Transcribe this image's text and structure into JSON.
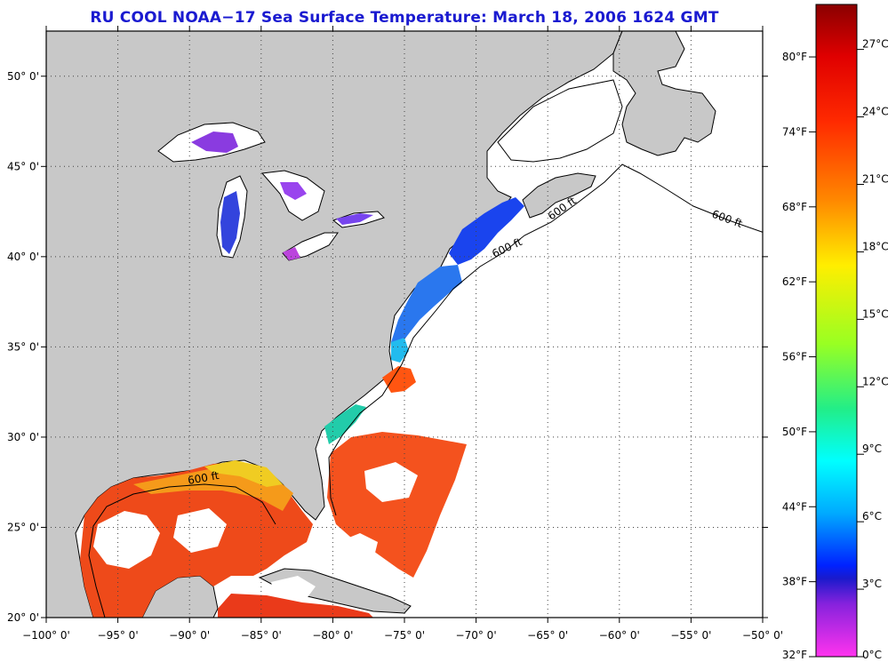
{
  "title": "RU COOL  NOAA−17  Sea Surface Temperature:  March 18, 2006 1624 GMT",
  "map": {
    "lon_range": [
      -100,
      -50
    ],
    "lat_range": [
      20,
      52.5
    ],
    "lon_ticks": [
      "−100° 0'",
      "−95° 0'",
      "−90° 0'",
      "−85° 0'",
      "−80° 0'",
      "−75° 0'",
      "−70° 0'",
      "−65° 0'",
      "−60° 0'",
      "−55° 0'",
      "−50° 0'"
    ],
    "lat_ticks": [
      "20° 0'",
      "25° 0'",
      "30° 0'",
      "35° 0'",
      "40° 0'",
      "45° 0'",
      "50° 0'"
    ],
    "contour_label": "600 ft",
    "land_color": "#c8c8c8",
    "grid": "dotted"
  },
  "colorbar": {
    "fahrenheit": [
      "80°F",
      "74°F",
      "68°F",
      "62°F",
      "56°F",
      "50°F",
      "44°F",
      "38°F",
      "32°F"
    ],
    "celsius": [
      "27°C",
      "24°C",
      "21°C",
      "18°C",
      "15°C",
      "12°C",
      "9°C",
      "6°C",
      "3°C",
      "0°C"
    ]
  }
}
